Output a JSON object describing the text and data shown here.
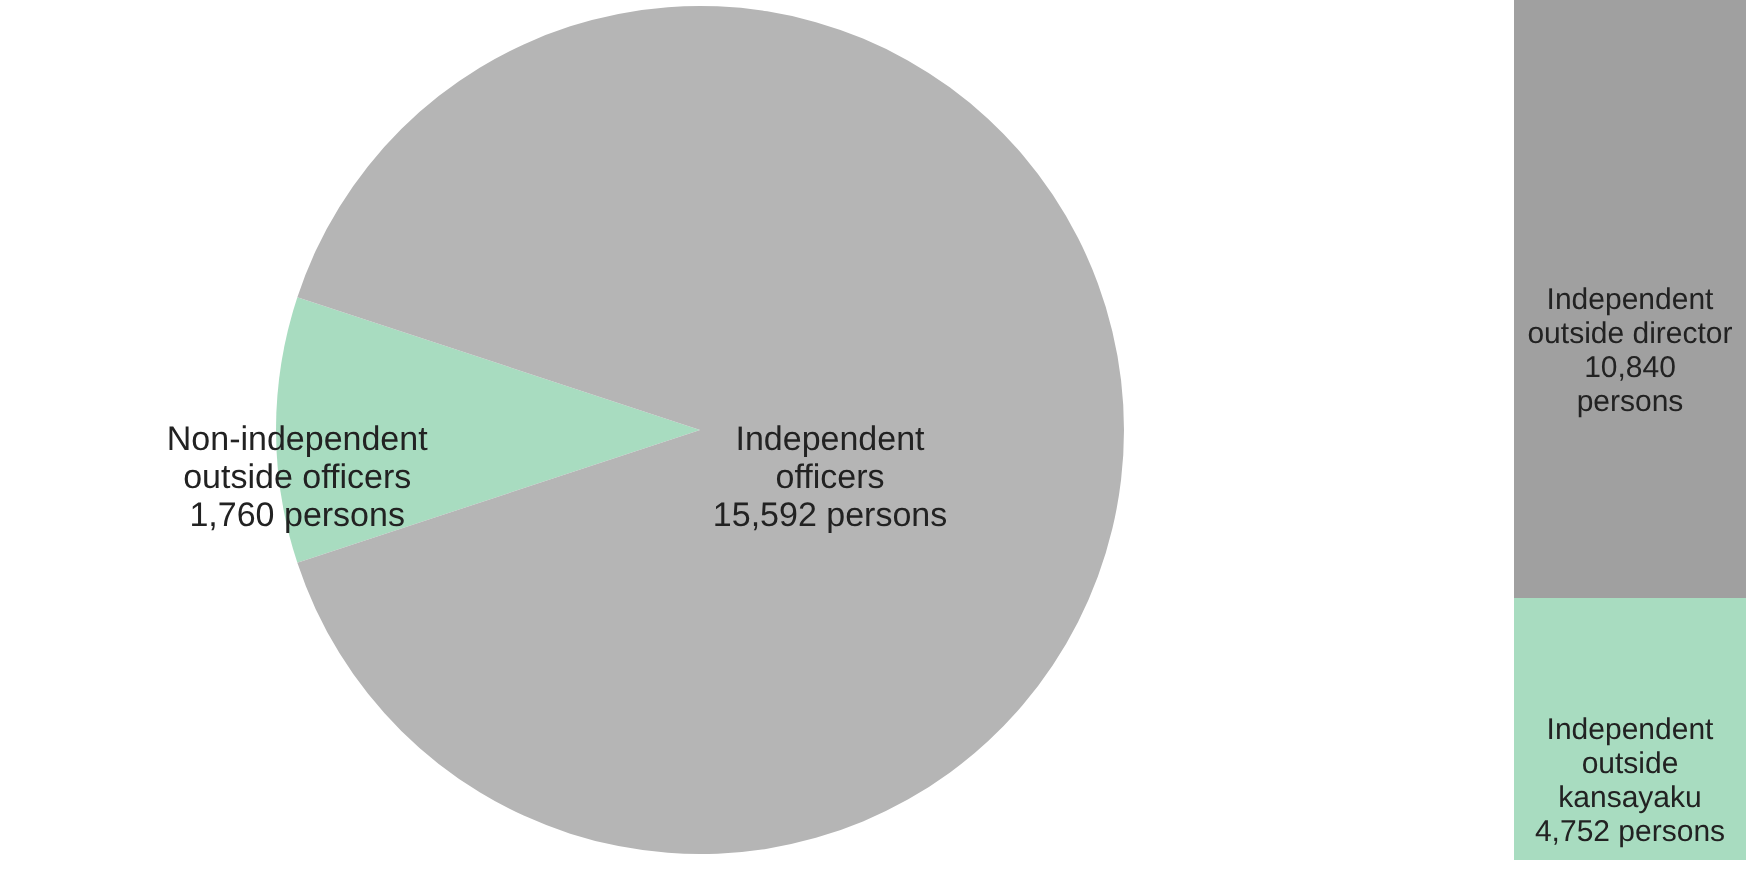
{
  "chart_data": [
    {
      "type": "pie",
      "categories": [
        "Non-independent outside officers",
        "Independent officers"
      ],
      "values": [
        1760,
        15592
      ],
      "colors": [
        "#a8dcc0",
        "#b5b5b5"
      ],
      "value_labels": [
        "1,760 persons",
        "15,592 persons"
      ]
    },
    {
      "type": "bar",
      "stacked": true,
      "categories": [
        null
      ],
      "series": [
        {
          "name": "Independent outside kansayaku",
          "color": "#a8dcc0",
          "values": [
            4752
          ],
          "value_labels": [
            "4,752 persons"
          ]
        },
        {
          "name": "Independent outside director",
          "color": "#a0a0a0",
          "values": [
            10840
          ],
          "value_labels": [
            "10,840 persons"
          ]
        }
      ]
    }
  ]
}
